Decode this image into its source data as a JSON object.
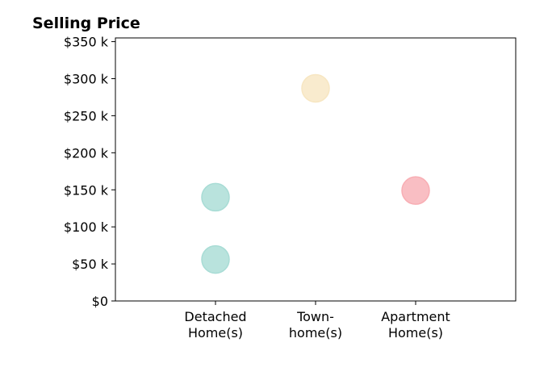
{
  "chart_data": {
    "type": "scatter",
    "title": "Selling Price",
    "xlabel": "",
    "ylabel": "",
    "categories": [
      [
        "Detached",
        "Home(s)"
      ],
      [
        "Town-",
        "home(s)"
      ],
      [
        "Apartment",
        "Home(s)"
      ]
    ],
    "ylim": [
      0,
      355000
    ],
    "yticks": [
      0,
      50000,
      100000,
      150000,
      200000,
      250000,
      300000,
      350000
    ],
    "ytick_labels": [
      "$0",
      "$50 k",
      "$100 k",
      "$150 k",
      "$200 k",
      "$250 k",
      "$300 k",
      "$350 k"
    ],
    "grid": false,
    "legend": "none",
    "points": [
      {
        "category": 0,
        "y": 140000,
        "color": "#a8dcd5"
      },
      {
        "category": 0,
        "y": 56000,
        "color": "#a8dcd5"
      },
      {
        "category": 1,
        "y": 287000,
        "color": "#f7e6c2"
      },
      {
        "category": 2,
        "y": 149000,
        "color": "#f8aeb4"
      }
    ]
  }
}
